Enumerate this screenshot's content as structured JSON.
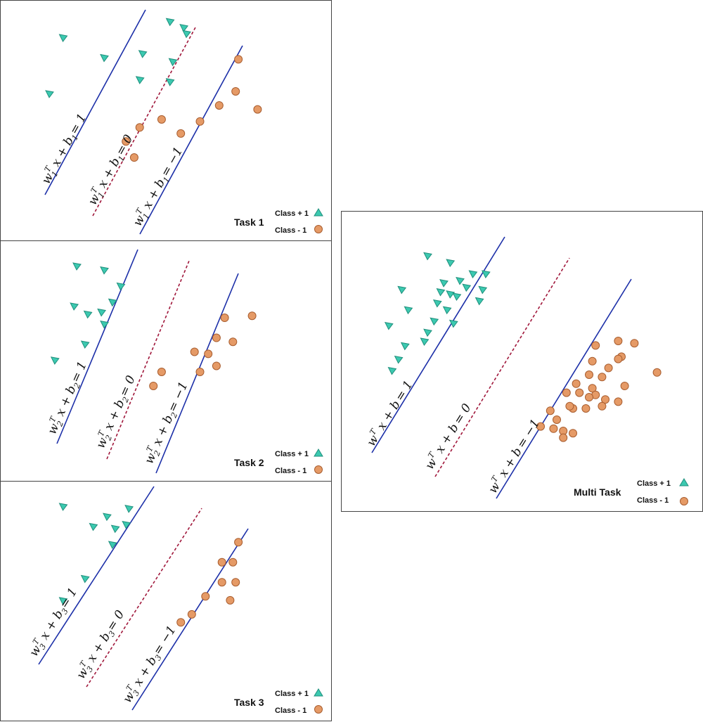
{
  "legend": {
    "pos_label": "Class + 1",
    "neg_label": "Class - 1"
  },
  "colors": {
    "positive": "#3cc9b0",
    "negative": "#e59a66",
    "support_line": "#1c2fa8",
    "decision_line": "#a0173b"
  },
  "panels": [
    {
      "id": "task1",
      "title": "Task 1",
      "w": "w",
      "w_sub": "1",
      "b": "b",
      "b_sub": "1",
      "sup": "T",
      "eq_pos_rhs": "= 1",
      "eq_zero_rhs": "= 0",
      "eq_neg_rhs": "= −1",
      "positive": [
        [
          1.5,
          8.7
        ],
        [
          3.0,
          7.7
        ],
        [
          5.4,
          9.5
        ],
        [
          4.4,
          7.9
        ],
        [
          5.5,
          7.5
        ],
        [
          4.3,
          6.6
        ],
        [
          5.4,
          6.5
        ],
        [
          1.0,
          5.9
        ],
        [
          5.9,
          9.2
        ],
        [
          6.0,
          8.9
        ]
      ],
      "negative": [
        [
          7.9,
          7.6
        ],
        [
          7.8,
          6.0
        ],
        [
          8.6,
          5.1
        ],
        [
          7.2,
          5.3
        ],
        [
          6.5,
          4.5
        ],
        [
          5.1,
          4.6
        ],
        [
          5.8,
          3.9
        ],
        [
          3.8,
          3.5
        ],
        [
          4.1,
          2.7
        ],
        [
          4.3,
          4.2
        ]
      ]
    },
    {
      "id": "task2",
      "title": "Task 2",
      "w": "w",
      "w_sub": "2",
      "b": "b",
      "b_sub": "2",
      "sup": "T",
      "positive": [
        [
          2.0,
          9.3
        ],
        [
          3.0,
          9.1
        ],
        [
          3.6,
          8.3
        ],
        [
          1.9,
          7.3
        ],
        [
          3.3,
          7.5
        ],
        [
          3.0,
          6.4
        ],
        [
          2.3,
          5.4
        ],
        [
          1.2,
          4.6
        ],
        [
          2.9,
          7.0
        ],
        [
          2.4,
          6.9
        ]
      ],
      "negative": [
        [
          7.4,
          6.7
        ],
        [
          8.4,
          6.8
        ],
        [
          7.1,
          5.7
        ],
        [
          7.7,
          5.5
        ],
        [
          6.8,
          4.9
        ],
        [
          6.3,
          5.0
        ],
        [
          7.1,
          4.3
        ],
        [
          6.5,
          4.0
        ],
        [
          5.1,
          4.0
        ],
        [
          4.8,
          3.3
        ]
      ],
      "eq_pos_rhs": "= 1",
      "eq_zero_rhs": "= 0",
      "eq_neg_rhs": "= −1"
    },
    {
      "id": "task3",
      "title": "Task 3",
      "w": "w",
      "w_sub": "3",
      "b": "b",
      "b_sub": "3",
      "sup": "T",
      "eq_pos_rhs": "= 1",
      "eq_zero_rhs": "= 0",
      "eq_neg_rhs": "= −1",
      "positive": [
        [
          1.5,
          9.3
        ],
        [
          3.1,
          8.8
        ],
        [
          2.6,
          8.3
        ],
        [
          3.4,
          8.2
        ],
        [
          3.8,
          8.4
        ],
        [
          3.9,
          9.2
        ],
        [
          3.3,
          7.4
        ],
        [
          2.3,
          5.7
        ],
        [
          1.5,
          4.6
        ]
      ],
      "negative": [
        [
          7.9,
          7.5
        ],
        [
          7.3,
          6.5
        ],
        [
          7.7,
          6.5
        ],
        [
          7.3,
          5.5
        ],
        [
          7.8,
          5.5
        ],
        [
          6.7,
          4.8
        ],
        [
          7.6,
          4.6
        ],
        [
          6.2,
          3.9
        ],
        [
          5.8,
          3.5
        ]
      ]
    }
  ],
  "multi": {
    "title": "Multi Task",
    "w": "w",
    "sup": "T",
    "b": "b",
    "eq_pos_rhs": "= 1",
    "eq_zero_rhs": "= 0",
    "eq_neg_rhs": "= −1",
    "positive": [
      [
        2.0,
        9.3
      ],
      [
        2.7,
        9.0
      ],
      [
        1.2,
        7.8
      ],
      [
        2.5,
        8.1
      ],
      [
        2.7,
        7.6
      ],
      [
        2.3,
        7.2
      ],
      [
        2.4,
        7.7
      ],
      [
        2.9,
        7.5
      ],
      [
        3.2,
        7.9
      ],
      [
        3.0,
        8.2
      ],
      [
        3.4,
        8.5
      ],
      [
        3.8,
        8.5
      ],
      [
        3.7,
        7.8
      ],
      [
        3.6,
        7.3
      ],
      [
        2.6,
        6.9
      ],
      [
        2.2,
        6.4
      ],
      [
        2.8,
        6.3
      ],
      [
        0.8,
        6.2
      ],
      [
        1.4,
        6.9
      ],
      [
        1.3,
        5.3
      ],
      [
        1.9,
        5.5
      ],
      [
        2.0,
        5.9
      ],
      [
        1.1,
        4.7
      ],
      [
        0.9,
        4.2
      ]
    ],
    "negative": [
      [
        7.9,
        5.5
      ],
      [
        8.4,
        5.4
      ],
      [
        7.2,
        5.3
      ],
      [
        8.0,
        4.8
      ],
      [
        7.9,
        4.7
      ],
      [
        7.1,
        4.6
      ],
      [
        7.6,
        4.3
      ],
      [
        9.1,
        4.1
      ],
      [
        7.0,
        4.0
      ],
      [
        7.4,
        3.9
      ],
      [
        8.1,
        3.5
      ],
      [
        6.6,
        3.6
      ],
      [
        7.1,
        3.4
      ],
      [
        7.2,
        3.1
      ],
      [
        6.7,
        3.2
      ],
      [
        6.3,
        3.2
      ],
      [
        7.0,
        3.0
      ],
      [
        7.5,
        2.9
      ],
      [
        6.5,
        2.5
      ],
      [
        6.9,
        2.5
      ],
      [
        7.4,
        2.6
      ],
      [
        7.9,
        2.8
      ],
      [
        6.0,
        2.0
      ],
      [
        6.4,
        2.6
      ],
      [
        5.8,
        2.4
      ],
      [
        5.5,
        1.7
      ],
      [
        5.9,
        1.6
      ],
      [
        6.2,
        1.5
      ],
      [
        6.5,
        1.4
      ],
      [
        6.2,
        1.2
      ]
    ]
  }
}
